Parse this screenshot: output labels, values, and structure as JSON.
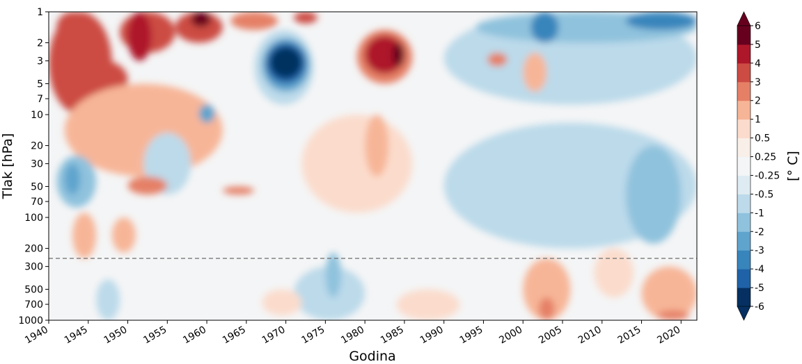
{
  "chart_data": {
    "type": "heatmap",
    "subtype": "filled-contour",
    "title": "",
    "xlabel": "Godina",
    "ylabel": "Tlak [hPa]",
    "xlim": [
      1940,
      2022
    ],
    "ylim": [
      1000,
      1
    ],
    "y_scale": "log",
    "y_inverted": true,
    "grid": false,
    "x_ticks": [
      1940,
      1945,
      1950,
      1955,
      1960,
      1965,
      1970,
      1975,
      1980,
      1985,
      1990,
      1995,
      2000,
      2005,
      2010,
      2015,
      2020
    ],
    "y_ticks": [
      1,
      2,
      3,
      5,
      7,
      10,
      20,
      30,
      50,
      70,
      100,
      200,
      300,
      500,
      700,
      1000
    ],
    "reference_line": {
      "y": 250,
      "style": "dashed",
      "color": "#777777"
    },
    "colorbar": {
      "label": "[° C]",
      "placement": "right",
      "extend": "both",
      "levels": [
        "-6",
        "-5",
        "-4",
        "-3",
        "-2",
        "-1",
        "-0.5",
        "-0.25",
        "0.25",
        "0.5",
        "1",
        "2",
        "3",
        "4",
        "5",
        "6"
      ],
      "colors": [
        "#053061",
        "#1f62a7",
        "#3885bc",
        "#5fa4cd",
        "#8fc2dd",
        "#bcdaea",
        "#deebf2",
        "#f3f5f6",
        "#f9efe9",
        "#fbdccc",
        "#f7b597",
        "#e58066",
        "#cc4b43",
        "#ae172a",
        "#67001f"
      ],
      "under_color": "#053061",
      "over_color": "#67001f"
    },
    "anomaly_regions": [
      {
        "x": [
          1940,
          1948
        ],
        "y": [
          1,
          10
        ],
        "value": 3
      },
      {
        "x": [
          1944,
          1950
        ],
        "y": [
          3,
          7
        ],
        "value": 3.5
      },
      {
        "x": [
          1941,
          1945
        ],
        "y": [
          1,
          2
        ],
        "value": 3
      },
      {
        "x": [
          1949,
          1956
        ],
        "y": [
          1,
          2.5
        ],
        "value": 3.5
      },
      {
        "x": [
          1950,
          1953
        ],
        "y": [
          1,
          3
        ],
        "value": 4.5
      },
      {
        "x": [
          1956,
          1962
        ],
        "y": [
          1,
          2
        ],
        "value": 3.5
      },
      {
        "x": [
          1958,
          1960.5
        ],
        "y": [
          1,
          1.4
        ],
        "value": 5
      },
      {
        "x": [
          1963,
          1969
        ],
        "y": [
          1,
          1.5
        ],
        "value": 2.5
      },
      {
        "x": [
          1971,
          1974
        ],
        "y": [
          1,
          1.3
        ],
        "value": 3
      },
      {
        "x": [
          1942,
          1962
        ],
        "y": [
          5,
          40
        ],
        "value": 1.2
      },
      {
        "x": [
          1972,
          1986
        ],
        "y": [
          10,
          90
        ],
        "value": 0.7
      },
      {
        "x": [
          1980,
          1983
        ],
        "y": [
          10,
          40
        ],
        "value": 1.2
      },
      {
        "x": [
          1966,
          1973.5
        ],
        "y": [
          1.5,
          8
        ],
        "value": -1
      },
      {
        "x": [
          1967,
          1973
        ],
        "y": [
          1.8,
          6
        ],
        "value": -3
      },
      {
        "x": [
          1967.5,
          1972.5
        ],
        "y": [
          2,
          5
        ],
        "value": -5
      },
      {
        "x": [
          1968,
          1972
        ],
        "y": [
          2.2,
          4.4
        ],
        "value": -7
      },
      {
        "x": [
          1979,
          1986
        ],
        "y": [
          1.5,
          5
        ],
        "value": 2.5
      },
      {
        "x": [
          1980,
          1985
        ],
        "y": [
          1.7,
          4
        ],
        "value": 4.5
      },
      {
        "x": [
          1983.5,
          1985
        ],
        "y": [
          2,
          3.4
        ],
        "value": 5.5
      },
      {
        "x": [
          1990,
          2022
        ],
        "y": [
          1,
          8
        ],
        "value": -1
      },
      {
        "x": [
          1994,
          2022
        ],
        "y": [
          1,
          2
        ],
        "value": -2
      },
      {
        "x": [
          2001,
          2004.5
        ],
        "y": [
          1,
          2
        ],
        "value": -3.5
      },
      {
        "x": [
          2013,
          2022
        ],
        "y": [
          1,
          1.5
        ],
        "value": -3.5
      },
      {
        "x": [
          2000,
          2003
        ],
        "y": [
          2.5,
          6
        ],
        "value": 1.5
      },
      {
        "x": [
          1995.5,
          1998
        ],
        "y": [
          2.5,
          3.4
        ],
        "value": 2
      },
      {
        "x": [
          1941,
          1946
        ],
        "y": [
          25,
          80
        ],
        "value": -1.3
      },
      {
        "x": [
          1942,
          1944
        ],
        "y": [
          30,
          60
        ],
        "value": -2.5
      },
      {
        "x": [
          1952,
          1958
        ],
        "y": [
          15,
          60
        ],
        "value": -0.7
      },
      {
        "x": [
          1959,
          1961
        ],
        "y": [
          8,
          12
        ],
        "value": -2.5
      },
      {
        "x": [
          1990,
          2022
        ],
        "y": [
          12,
          200
        ],
        "value": -0.8
      },
      {
        "x": [
          2013,
          2020
        ],
        "y": [
          20,
          180
        ],
        "value": -1.2
      },
      {
        "x": [
          1950,
          1955
        ],
        "y": [
          40,
          60
        ],
        "value": 2.5
      },
      {
        "x": [
          1962,
          1966
        ],
        "y": [
          50,
          60
        ],
        "value": 2
      },
      {
        "x": [
          1971,
          1980
        ],
        "y": [
          300,
          1000
        ],
        "value": -1
      },
      {
        "x": [
          1975,
          1977
        ],
        "y": [
          220,
          600
        ],
        "value": -2
      },
      {
        "x": [
          1946,
          1949
        ],
        "y": [
          400,
          1000
        ],
        "value": -1
      },
      {
        "x": [
          1943,
          1946
        ],
        "y": [
          90,
          250
        ],
        "value": 1.2
      },
      {
        "x": [
          1948,
          1951
        ],
        "y": [
          100,
          220
        ],
        "value": 1.5
      },
      {
        "x": [
          2000,
          2006
        ],
        "y": [
          250,
          1000
        ],
        "value": 1.1
      },
      {
        "x": [
          2002,
          2004
        ],
        "y": [
          600,
          1000
        ],
        "value": 2.2
      },
      {
        "x": [
          2009,
          2014
        ],
        "y": [
          200,
          600
        ],
        "value": 0.8
      },
      {
        "x": [
          2015,
          2022
        ],
        "y": [
          300,
          1000
        ],
        "value": 1.2
      },
      {
        "x": [
          2017,
          2021
        ],
        "y": [
          800,
          1000
        ],
        "value": 2.2
      },
      {
        "x": [
          1984,
          1992
        ],
        "y": [
          500,
          1000
        ],
        "value": 0.6
      },
      {
        "x": [
          1967,
          1972
        ],
        "y": [
          500,
          900
        ],
        "value": 0.5
      }
    ]
  }
}
